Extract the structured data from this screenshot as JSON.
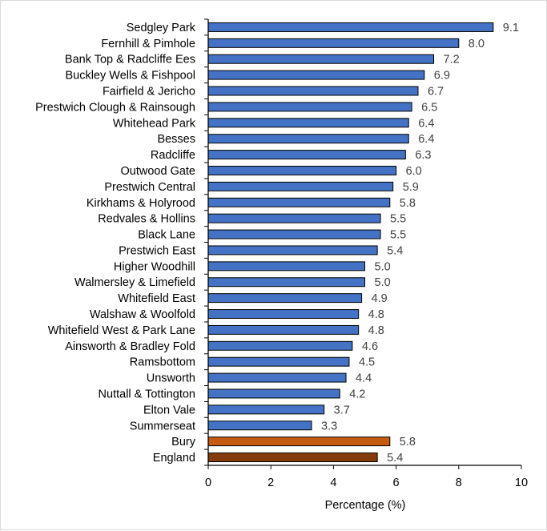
{
  "colors": {
    "ward_bar": "#4472c4",
    "bury_bar": "#c55a11",
    "england_bar": "#843c0c",
    "bar_outline": "#000000",
    "axis": "#000000",
    "value_text": "#404040"
  },
  "chart_data": {
    "type": "bar",
    "orientation": "horizontal",
    "categories": [
      "Sedgley Park",
      "Fernhill & Pimhole",
      "Bank Top & Radcliffe Ees",
      "Buckley Wells & Fishpool",
      "Fairfield & Jericho",
      "Prestwich Clough & Rainsough",
      "Whitehead Park",
      "Besses",
      "Radcliffe",
      "Outwood Gate",
      "Prestwich Central",
      "Kirkhams & Holyrood",
      "Redvales & Hollins",
      "Black Lane",
      "Prestwich East",
      "Higher Woodhill",
      "Walmersley & Limefield",
      "Whitefield East",
      "Walshaw & Woolfold",
      "Whitefield West & Park Lane",
      "Ainsworth & Bradley Fold",
      "Ramsbottom",
      "Unsworth",
      "Nuttall & Tottington",
      "Elton Vale",
      "Summerseat",
      "Bury",
      "England"
    ],
    "values": [
      9.1,
      8.0,
      7.2,
      6.9,
      6.7,
      6.5,
      6.4,
      6.4,
      6.3,
      6.0,
      5.9,
      5.8,
      5.5,
      5.5,
      5.4,
      5.0,
      5.0,
      4.9,
      4.8,
      4.8,
      4.6,
      4.5,
      4.4,
      4.2,
      3.7,
      3.3,
      5.8,
      5.4
    ],
    "value_labels": [
      "9.1",
      "8.0",
      "7.2",
      "6.9",
      "6.7",
      "6.5",
      "6.4",
      "6.4",
      "6.3",
      "6.0",
      "5.9",
      "5.8",
      "5.5",
      "5.5",
      "5.4",
      "5.0",
      "5.0",
      "4.9",
      "4.8",
      "4.8",
      "4.6",
      "4.5",
      "4.4",
      "4.2",
      "3.7",
      "3.3",
      "5.8",
      "5.4"
    ],
    "bar_color_keys": [
      "ward_bar",
      "ward_bar",
      "ward_bar",
      "ward_bar",
      "ward_bar",
      "ward_bar",
      "ward_bar",
      "ward_bar",
      "ward_bar",
      "ward_bar",
      "ward_bar",
      "ward_bar",
      "ward_bar",
      "ward_bar",
      "ward_bar",
      "ward_bar",
      "ward_bar",
      "ward_bar",
      "ward_bar",
      "ward_bar",
      "ward_bar",
      "ward_bar",
      "ward_bar",
      "ward_bar",
      "ward_bar",
      "ward_bar",
      "bury_bar",
      "england_bar"
    ],
    "xlabel": "Percentage (%)",
    "ylabel": "",
    "title": "",
    "xlim": [
      0,
      10
    ],
    "x_ticks": [
      "0",
      "2",
      "4",
      "6",
      "8",
      "10"
    ],
    "grid": false,
    "legend": "none"
  }
}
